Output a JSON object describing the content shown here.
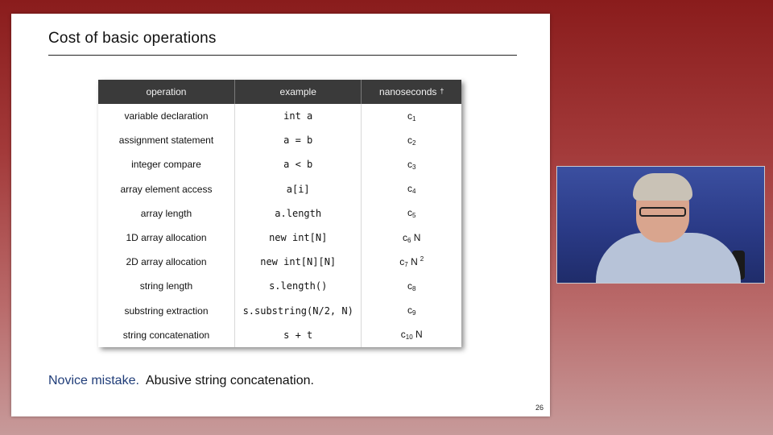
{
  "slide": {
    "title": "Cost of basic operations",
    "page_number": "26",
    "note_lead": "Novice mistake.",
    "note_text": "Abusive string concatenation."
  },
  "table": {
    "headers": {
      "operation": "operation",
      "example": "example",
      "nanoseconds": "nanoseconds",
      "nanoseconds_mark": "†"
    },
    "rows": [
      {
        "operation": "variable declaration",
        "example": "int a",
        "cost": "c",
        "sub": "1",
        "tail": "",
        "sup": ""
      },
      {
        "operation": "assignment statement",
        "example": "a = b",
        "cost": "c",
        "sub": "2",
        "tail": "",
        "sup": ""
      },
      {
        "operation": "integer compare",
        "example": "a < b",
        "cost": "c",
        "sub": "3",
        "tail": "",
        "sup": ""
      },
      {
        "operation": "array element access",
        "example": "a[i]",
        "cost": "c",
        "sub": "4",
        "tail": "",
        "sup": ""
      },
      {
        "operation": "array length",
        "example": "a.length",
        "cost": "c",
        "sub": "5",
        "tail": "",
        "sup": ""
      },
      {
        "operation": "1D array allocation",
        "example": "new int[N]",
        "cost": "c",
        "sub": "6",
        "tail": " N",
        "sup": ""
      },
      {
        "operation": "2D array allocation",
        "example": "new int[N][N]",
        "cost": "c",
        "sub": "7",
        "tail": " N",
        "sup": "2"
      },
      {
        "operation": "string length",
        "example": "s.length()",
        "cost": "c",
        "sub": "8",
        "tail": "",
        "sup": ""
      },
      {
        "operation": "substring extraction",
        "example": "s.substring(N/2, N)",
        "cost": "c",
        "sub": "9",
        "tail": "",
        "sup": ""
      },
      {
        "operation": "string concatenation",
        "example": "s + t",
        "cost": "c",
        "sub": "10",
        "tail": " N",
        "sup": ""
      }
    ]
  }
}
